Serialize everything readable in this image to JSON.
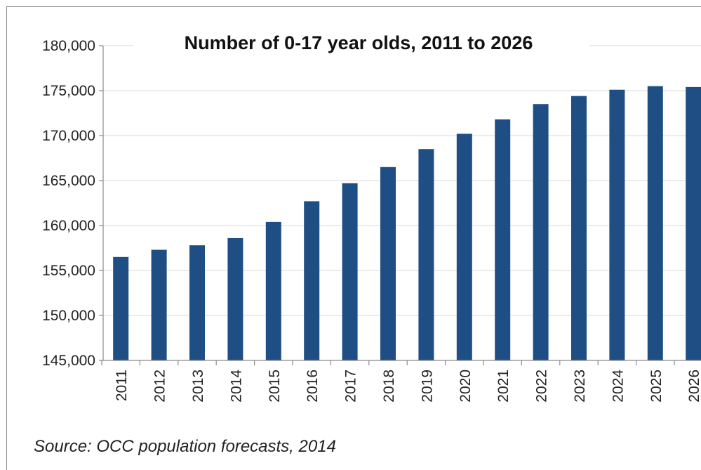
{
  "chart_data": {
    "type": "bar",
    "title": "Number of 0-17 year olds, 2011 to 2026",
    "xlabel": "",
    "ylabel": "",
    "categories": [
      "2011",
      "2012",
      "2013",
      "2014",
      "2015",
      "2016",
      "2017",
      "2018",
      "2019",
      "2020",
      "2021",
      "2022",
      "2023",
      "2024",
      "2025",
      "2026"
    ],
    "values": [
      156500,
      157300,
      157800,
      158600,
      160400,
      162700,
      164700,
      166500,
      168500,
      170200,
      171800,
      173500,
      174400,
      175100,
      175500,
      175400
    ],
    "ylim": [
      145000,
      180000
    ],
    "yticks": [
      145000,
      150000,
      155000,
      160000,
      165000,
      170000,
      175000,
      180000
    ],
    "ytick_labels": [
      "145,000",
      "150,000",
      "155,000",
      "160,000",
      "165,000",
      "170,000",
      "175,000",
      "180,000"
    ],
    "grid": true,
    "legend": "none",
    "bar_color": "#1f4e84",
    "grid_color": "#d9d9d9",
    "axis_color": "#8a8a8a"
  },
  "source_note": "Source:  OCC population forecasts, 2014"
}
